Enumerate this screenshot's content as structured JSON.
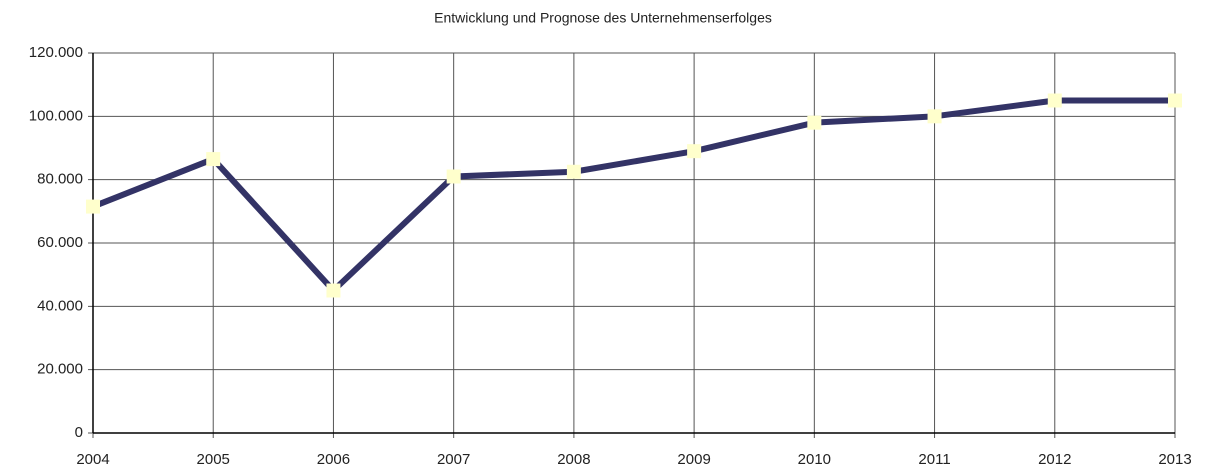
{
  "chart_data": {
    "type": "line",
    "title": "Entwicklung und Prognose des Unternehmenserfolges",
    "x": [
      2004,
      2005,
      2006,
      2007,
      2008,
      2009,
      2010,
      2011,
      2012,
      2013
    ],
    "series": [
      {
        "color": "#333366",
        "marker_color": "#ffffcc",
        "values": [
          71500,
          86500,
          45000,
          81000,
          82500,
          89000,
          98000,
          100000,
          105000,
          105000
        ]
      }
    ],
    "xlim": [
      2004,
      2013
    ],
    "xticks": [
      2004,
      2005,
      2006,
      2007,
      2008,
      2009,
      2010,
      2011,
      2012,
      2013
    ],
    "ylim": [
      0,
      120000
    ],
    "yticks": [
      0,
      {
        "value": 20000,
        "label": "20.000"
      },
      {
        "value": 40000,
        "label": "40.000"
      },
      {
        "value": 60000,
        "label": "60.000"
      },
      {
        "value": 80000,
        "label": "80.000"
      },
      {
        "value": 100000,
        "label": "100.000"
      },
      {
        "value": 120000,
        "label": "120.000"
      }
    ],
    "grid": true
  }
}
